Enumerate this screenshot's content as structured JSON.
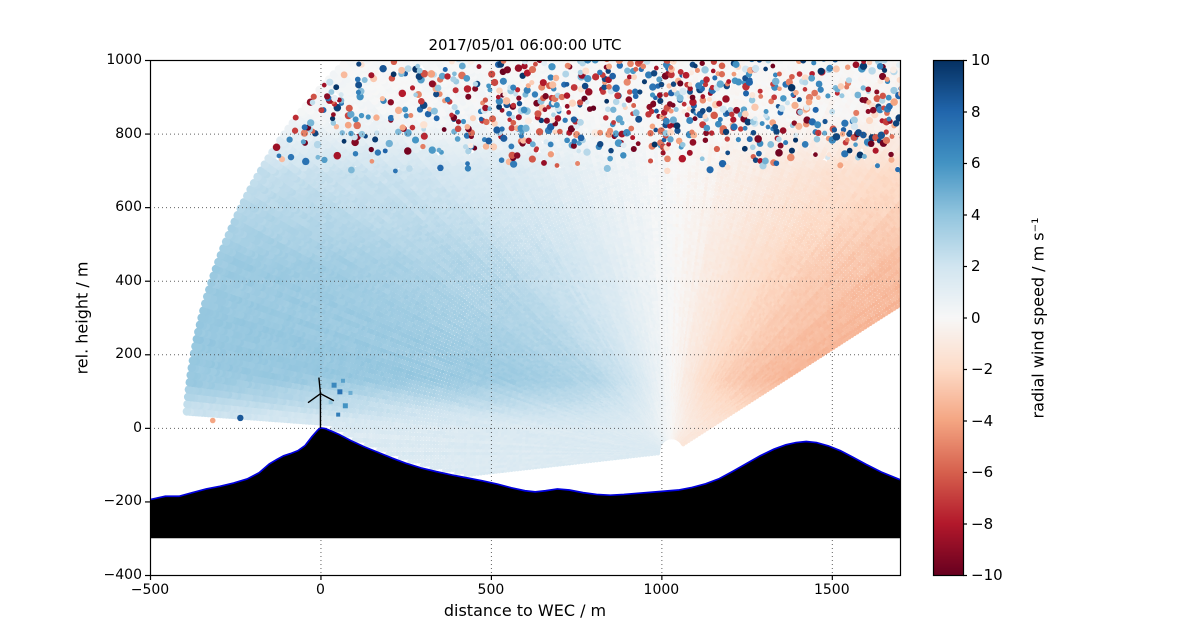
{
  "chart_data": {
    "type": "heatmap",
    "title": "2017/05/01 06:00:00 UTC",
    "xlabel": "distance to WEC / m",
    "ylabel": "rel. height / m",
    "xlim": [
      -500,
      1700
    ],
    "ylim": [
      -400,
      1000
    ],
    "xticks": [
      -500,
      0,
      500,
      1000,
      1500
    ],
    "yticks": [
      -400,
      -200,
      0,
      200,
      400,
      600,
      800,
      1000
    ],
    "grid": "dotted",
    "background": "#ffffff",
    "colorbar": {
      "label": "radial wind speed / m s⁻¹",
      "min": -10,
      "max": 10,
      "ticks": [
        10,
        8,
        6,
        4,
        2,
        0,
        -2,
        -4,
        -6,
        -8,
        -10
      ],
      "colormap": "RdBu",
      "anchors": [
        [
          0.0,
          [
            103,
            0,
            31
          ]
        ],
        [
          0.1,
          [
            178,
            24,
            43
          ]
        ],
        [
          0.2,
          [
            214,
            96,
            77
          ]
        ],
        [
          0.3,
          [
            244,
            165,
            130
          ]
        ],
        [
          0.4,
          [
            253,
            219,
            199
          ]
        ],
        [
          0.5,
          [
            247,
            247,
            247
          ]
        ],
        [
          0.6,
          [
            209,
            229,
            240
          ]
        ],
        [
          0.7,
          [
            146,
            197,
            222
          ]
        ],
        [
          0.8,
          [
            67,
            147,
            195
          ]
        ],
        [
          0.9,
          [
            33,
            102,
            172
          ]
        ],
        [
          1.0,
          [
            5,
            48,
            97
          ]
        ]
      ]
    },
    "scan": {
      "origin_x": 1030,
      "origin_z": -65,
      "angle_min_deg": 30,
      "angle_max_deg": 186,
      "angle_step_deg": 0.8,
      "range_min_m": 40,
      "range_max_m": 1430,
      "range_step_m": 9,
      "wind_speed_profile": [
        [
          0,
          3.2
        ],
        [
          150,
          3.9
        ],
        [
          450,
          3.9
        ],
        [
          1000,
          1.6
        ]
      ],
      "ground_damp_height": 130,
      "fade_top_start": 700,
      "fade_top_span": 160,
      "noise_height_start": 690,
      "noise_height_full": 800,
      "noise_probability": 0.3,
      "seed": 1234567
    },
    "terrain": {
      "fill": "#000000",
      "edge": "#0000dd",
      "base_height": -300,
      "profile": [
        [
          -500,
          -195
        ],
        [
          -455,
          -186
        ],
        [
          -415,
          -186
        ],
        [
          -375,
          -176
        ],
        [
          -335,
          -166
        ],
        [
          -295,
          -159
        ],
        [
          -255,
          -150
        ],
        [
          -215,
          -139
        ],
        [
          -180,
          -122
        ],
        [
          -150,
          -98
        ],
        [
          -128,
          -86
        ],
        [
          -108,
          -76
        ],
        [
          -88,
          -70
        ],
        [
          -66,
          -62
        ],
        [
          -45,
          -48
        ],
        [
          -25,
          -24
        ],
        [
          -8,
          -6
        ],
        [
          0,
          0
        ],
        [
          14,
          -2
        ],
        [
          30,
          -8
        ],
        [
          55,
          -18
        ],
        [
          90,
          -35
        ],
        [
          130,
          -52
        ],
        [
          170,
          -67
        ],
        [
          210,
          -82
        ],
        [
          250,
          -96
        ],
        [
          295,
          -109
        ],
        [
          340,
          -119
        ],
        [
          385,
          -128
        ],
        [
          430,
          -136
        ],
        [
          475,
          -144
        ],
        [
          520,
          -153
        ],
        [
          560,
          -163
        ],
        [
          600,
          -171
        ],
        [
          630,
          -174
        ],
        [
          660,
          -171
        ],
        [
          695,
          -166
        ],
        [
          730,
          -169
        ],
        [
          770,
          -176
        ],
        [
          810,
          -181
        ],
        [
          850,
          -183
        ],
        [
          890,
          -181
        ],
        [
          930,
          -178
        ],
        [
          970,
          -175
        ],
        [
          1010,
          -172
        ],
        [
          1050,
          -169
        ],
        [
          1090,
          -162
        ],
        [
          1130,
          -152
        ],
        [
          1170,
          -138
        ],
        [
          1210,
          -118
        ],
        [
          1250,
          -97
        ],
        [
          1290,
          -76
        ],
        [
          1330,
          -58
        ],
        [
          1365,
          -46
        ],
        [
          1395,
          -40
        ],
        [
          1425,
          -37
        ],
        [
          1455,
          -40
        ],
        [
          1490,
          -49
        ],
        [
          1525,
          -62
        ],
        [
          1560,
          -79
        ],
        [
          1600,
          -99
        ],
        [
          1645,
          -120
        ],
        [
          1700,
          -141
        ]
      ]
    },
    "turbine": {
      "x": 0,
      "base_height": 0,
      "hub_height": 93,
      "blade_length": 44,
      "blade_angles_deg": [
        96,
        214,
        334
      ]
    },
    "stray_points": [
      {
        "x": -235,
        "z": 27,
        "v": 8.5,
        "shape": "circle",
        "size": 3.2
      },
      {
        "x": -316,
        "z": 20,
        "v": -4,
        "shape": "circle",
        "size": 2.8
      },
      {
        "x": 40,
        "z": 116,
        "v": 6.5,
        "shape": "square",
        "size": 5
      },
      {
        "x": 57,
        "z": 98,
        "v": 7.5,
        "shape": "square",
        "size": 5
      },
      {
        "x": 73,
        "z": 60,
        "v": 6,
        "shape": "square",
        "size": 5
      },
      {
        "x": 88,
        "z": 95,
        "v": 5,
        "shape": "square",
        "size": 4
      },
      {
        "x": 52,
        "z": 36,
        "v": 7,
        "shape": "square",
        "size": 4
      },
      {
        "x": 66,
        "z": 128,
        "v": 5.5,
        "shape": "square",
        "size": 4
      },
      {
        "x": 30,
        "z": 70,
        "v": 4,
        "shape": "square",
        "size": 4
      }
    ]
  }
}
